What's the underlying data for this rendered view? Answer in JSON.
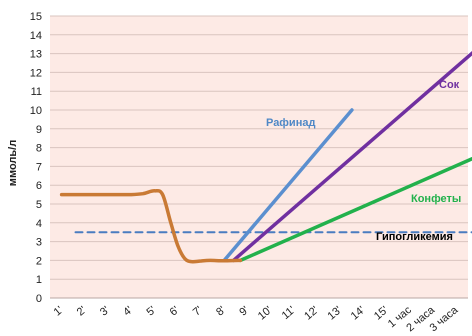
{
  "chart_data": {
    "type": "line",
    "ylabel": "ммоль/л",
    "ylim": [
      0,
      15
    ],
    "yticks": [
      "0",
      "1",
      "2",
      "3",
      "4",
      "5",
      "6",
      "7",
      "8",
      "9",
      "10",
      "11",
      "12",
      "13",
      "14",
      "15"
    ],
    "xlabels": [
      "1'",
      "2'",
      "3'",
      "4'",
      "5'",
      "6'",
      "7'",
      "8'",
      "9'",
      "10'",
      "11'",
      "12'",
      "13'",
      "14'",
      "15'",
      "1 час",
      "2 часа",
      "3 часа"
    ],
    "grid": true,
    "background": "#fdeae5",
    "series": [
      {
        "name": "Гипогликемия",
        "color": "#4a7cc0",
        "style": "dashed",
        "points": [
          [
            0.6,
            3.5
          ],
          [
            17.7,
            3.5
          ]
        ]
      },
      {
        "name": "Рафинад",
        "color": "#5b8fcf",
        "style": "solid",
        "points": [
          [
            7.0,
            2.0
          ],
          [
            12.5,
            10.0
          ]
        ]
      },
      {
        "name": "Сок",
        "color": "#7030a0",
        "style": "solid",
        "points": [
          [
            7.4,
            2.0
          ],
          [
            18.4,
            13.8
          ]
        ]
      },
      {
        "name": "Конфеты",
        "color": "#22b14c",
        "style": "solid",
        "points": [
          [
            7.7,
            2.0
          ],
          [
            18.4,
            7.8
          ]
        ]
      },
      {
        "name": "",
        "color": "#c97a35",
        "style": "smooth",
        "points": [
          [
            0,
            5.5
          ],
          [
            0.5,
            5.5
          ],
          [
            1,
            5.5
          ],
          [
            2,
            5.5
          ],
          [
            3,
            5.5
          ],
          [
            3.5,
            5.55
          ],
          [
            4.0,
            5.7
          ],
          [
            4.35,
            5.5
          ],
          [
            4.7,
            4.0
          ],
          [
            5.0,
            2.8
          ],
          [
            5.3,
            2.1
          ],
          [
            5.6,
            1.93
          ],
          [
            6.0,
            1.97
          ],
          [
            6.4,
            2.0
          ],
          [
            7.0,
            1.98
          ],
          [
            7.7,
            2.0
          ]
        ]
      }
    ]
  },
  "labels": {
    "rafinad": "Рафинад",
    "sok": "Сок",
    "konfety": "Конфеты",
    "hypo": "Гипогликемия"
  }
}
